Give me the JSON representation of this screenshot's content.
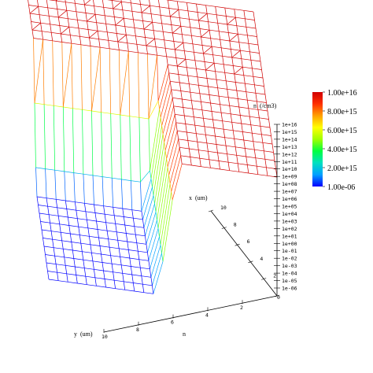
{
  "chart_data": {
    "type": "surface-3d-wireframe",
    "zlabel": "n  (/cm3)",
    "xlabel": "x  (um)",
    "ylabel": "y  (um)",
    "corner_label": "n",
    "z_scale": "log",
    "x_ticks": [
      "10",
      "8",
      "6",
      "4",
      "2",
      "0"
    ],
    "y_ticks": [
      "10",
      "8",
      "6",
      "4",
      "2"
    ],
    "z_ticks": [
      "1e+16",
      "1e+15",
      "1e+14",
      "1e+13",
      "1e+12",
      "1e+11",
      "1e+10",
      "1e+09",
      "1e+08",
      "1e+07",
      "1e+06",
      "1e+05",
      "1e+04",
      "1e+03",
      "1e+02",
      "1e+01",
      "1e+00",
      "1e-01",
      "1e-02",
      "1e-03",
      "1e-04",
      "1e-05",
      "1e-06"
    ],
    "colorbar": {
      "labels": [
        "1.00e+16",
        "8.00e+15",
        "6.00e+15",
        "4.00e+15",
        "2.00e+15",
        "1.00e-06"
      ],
      "colors": [
        "#0000ff",
        "#00a0ff",
        "#00e0c0",
        "#00ff40",
        "#a0ff00",
        "#ffff00",
        "#ffa000",
        "#ff3000",
        "#d00000"
      ]
    },
    "surface": {
      "plateau_value": "1e+16",
      "trench_value": "1e-06"
    }
  }
}
